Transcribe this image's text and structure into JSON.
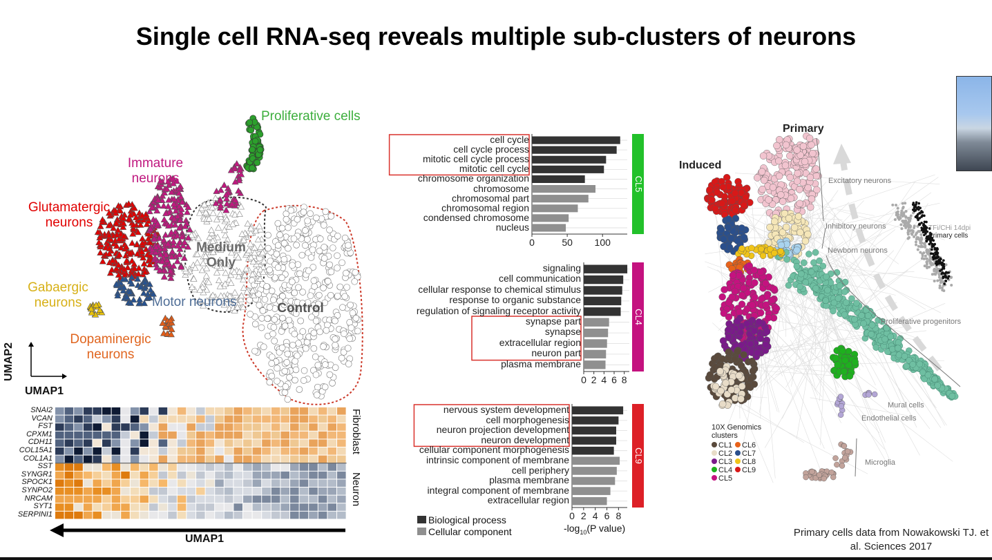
{
  "slide": {
    "title": "Single cell RNA-seq reveals multiple sub-clusters of neurons",
    "credit": "Primary cells data from Nowakowski TJ. et al. Sciences 2017"
  },
  "umap": {
    "axis_y": "UMAP2",
    "axis_x": "UMAP1",
    "labels": {
      "proliferative": "Proliferative cells",
      "immature": "Immature neurons",
      "glutamatergic": "Glutamatergic neurons",
      "medium_only": "Medium Only",
      "gabaergic": "Gabaergic neurons",
      "motor": "Motor neurons",
      "control": "Control",
      "dopaminergic": "Dopaminergic neurons"
    },
    "colors": {
      "proliferative": "#2ca02c",
      "immature": "#c0187f",
      "glutamatergic": "#e00000",
      "gabaergic": "#e8c20a",
      "motor": "#27528f",
      "dopaminergic": "#e25c17",
      "medium": "#9a9a9a",
      "control": "#8a8a8a"
    }
  },
  "heatmap": {
    "genes_fibroblast": [
      "SNAI2",
      "VCAN",
      "FST",
      "CPXM1",
      "CDH11",
      "COL15A1",
      "COL1A1"
    ],
    "genes_neuron": [
      "SST",
      "SYNGR1",
      "SPOCK1",
      "SYNPO2",
      "NRCAM",
      "SYT1",
      "SERPINI1"
    ],
    "group_fibroblast": "Fibroblast",
    "group_neuron": "Neuron",
    "axis": "UMAP1",
    "columns": 31
  },
  "chart_data": [
    {
      "type": "bar",
      "name": "CL5",
      "categories": [
        "cell cycle",
        "cell cycle process",
        "mitotic cell cycle process",
        "mitotic cell cycle",
        "chromosome organization",
        "chromosome",
        "chromosomal part",
        "chromosomal region",
        "condensed chromosome",
        "nucleus"
      ],
      "values": [
        125,
        120,
        105,
        102,
        75,
        90,
        80,
        65,
        52,
        48
      ],
      "series_type": [
        "bio",
        "bio",
        "bio",
        "bio",
        "bio",
        "cell",
        "cell",
        "cell",
        "cell",
        "cell"
      ],
      "xticks": [
        "0",
        "50",
        "100"
      ],
      "xlim": [
        0,
        135
      ],
      "highlighted": [
        0,
        1,
        2,
        3
      ]
    },
    {
      "type": "bar",
      "name": "CL4",
      "categories": [
        "signaling",
        "cell communication",
        "cellular response to chemical stimulus",
        "response to organic substance",
        "regulation of signaling receptor activity",
        "synapse part",
        "synapse",
        "extracellular region",
        "neuron part",
        "plasma membrane"
      ],
      "values": [
        8.6,
        7.8,
        7.6,
        7.4,
        7.3,
        5.0,
        4.8,
        4.6,
        4.4,
        4.3
      ],
      "series_type": [
        "bio",
        "bio",
        "bio",
        "bio",
        "bio",
        "cell",
        "cell",
        "cell",
        "cell",
        "cell"
      ],
      "xticks": [
        "0",
        "2",
        "4",
        "6",
        "8"
      ],
      "xlim": [
        0,
        9
      ],
      "highlighted": [
        5,
        6,
        7,
        8
      ]
    },
    {
      "type": "bar",
      "name": "CL9",
      "categories": [
        "nervous system development",
        "cell morphogenesis",
        "neuron projection development",
        "neuron development",
        "cellular component morphogenesis",
        "intrinsic component of membrane",
        "cell periphery",
        "plasma membrane",
        "integral component of membrane",
        "extracellular region"
      ],
      "values": [
        8.8,
        8.0,
        7.6,
        7.6,
        7.2,
        8.2,
        7.7,
        7.4,
        6.6,
        6.0
      ],
      "series_type": [
        "bio",
        "bio",
        "bio",
        "bio",
        "bio",
        "cell",
        "cell",
        "cell",
        "cell",
        "cell"
      ],
      "xticks": [
        "0",
        "2",
        "4",
        "6",
        "8"
      ],
      "xlim": [
        0,
        9.5
      ],
      "xlabel": "-log10(P value)",
      "highlighted": [
        0,
        1,
        2,
        3
      ]
    }
  ],
  "bar_legend": {
    "bio": "Biological process",
    "cell": "Cellular component",
    "bio_color": "#333333",
    "cell_color": "#8f8f8f",
    "xlabel_prefix": "-log",
    "xlabel_sub": "10",
    "xlabel_suffix": "(P value)"
  },
  "tag_colors": {
    "CL5": "#22c12a",
    "CL4": "#c4127f",
    "CL9": "#dd2027"
  },
  "right_panel": {
    "primary": "Primary",
    "induced": "Induced",
    "excitatory": "Excitatory neurons",
    "inhibitory": "Inhibitory neurons",
    "newborn": "Newborn neurons",
    "proliferative": "Proliferative progenitors",
    "mural": "Mural cells",
    "endothelial": "Endothelial cells",
    "microglia": "Microglia",
    "inset_a": "TFi/CHi 14dpi",
    "inset_b": "Primary cells",
    "legend_title_1": "10X Genomics",
    "legend_title_2": "clusters",
    "clusters": [
      {
        "name": "CL1",
        "color": "#5a4a3c"
      },
      {
        "name": "CL2",
        "color": "#e8dcc8"
      },
      {
        "name": "CL3",
        "color": "#7a1a8a"
      },
      {
        "name": "CL4",
        "color": "#1eb01e"
      },
      {
        "name": "CL5",
        "color": "#c4127f"
      },
      {
        "name": "CL6",
        "color": "#e8621a"
      },
      {
        "name": "CL7",
        "color": "#2a4f8c"
      },
      {
        "name": "CL8",
        "color": "#f0c419"
      },
      {
        "name": "CL9",
        "color": "#d81818"
      }
    ]
  }
}
